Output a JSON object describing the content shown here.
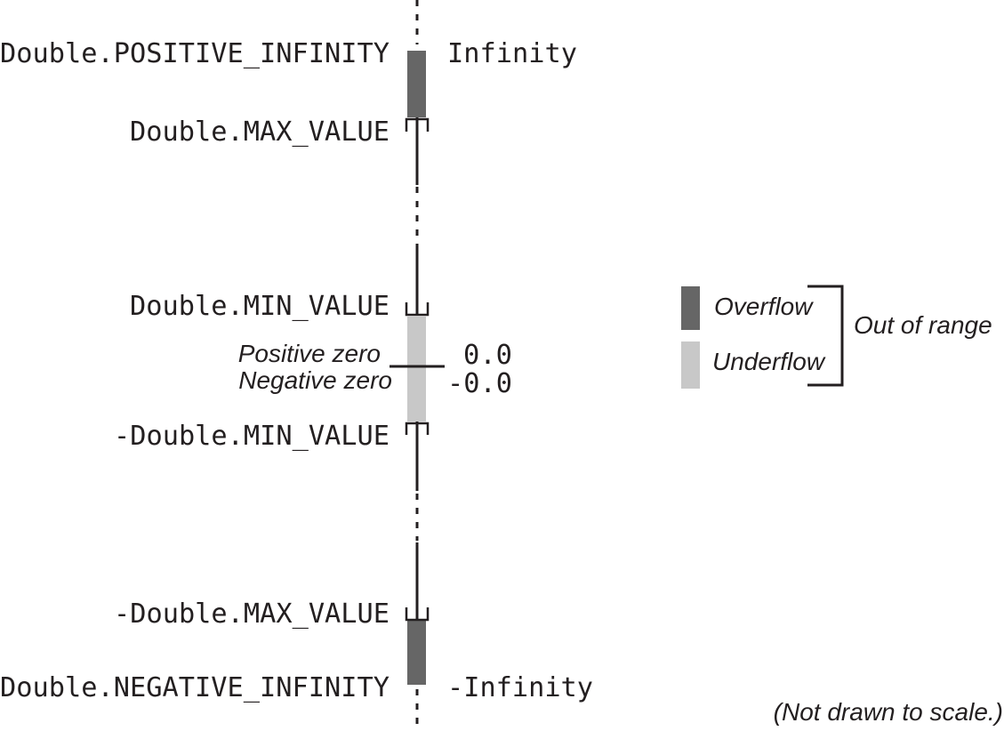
{
  "diagram": {
    "left_labels": {
      "positive_infinity": "Double.POSITIVE_INFINITY",
      "max_value": "Double.MAX_VALUE",
      "min_value": "Double.MIN_VALUE",
      "neg_min_value": "-Double.MIN_VALUE",
      "neg_max_value": "-Double.MAX_VALUE",
      "negative_infinity": "Double.NEGATIVE_INFINITY",
      "positive_zero": "Positive zero",
      "negative_zero": "Negative zero"
    },
    "right_labels": {
      "infinity": "Infinity",
      "zero": "0.0",
      "neg_zero": "-0.0",
      "neg_infinity": "-Infinity"
    },
    "legend": {
      "overflow": "Overflow",
      "underflow": "Underflow",
      "out_of_range": "Out of range"
    },
    "note": "(Not drawn to scale.)",
    "colors": {
      "overflow": "#666666",
      "underflow": "#c8c8c8",
      "line": "#231f20"
    }
  }
}
